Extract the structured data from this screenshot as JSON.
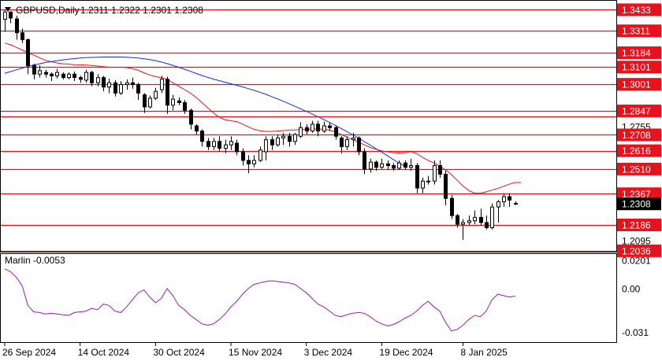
{
  "header": {
    "symbol": "GBPUSD,Daily",
    "ohlc": "1.2311 1.2322 1.2301 1.2308",
    "collapse_icon": "triangle-down-icon"
  },
  "colors": {
    "candle_border": "#000000",
    "bull_fill": "#ffffff",
    "bear_fill": "#000000",
    "level_line": "#e8121c",
    "ma_fast": "#e8121c",
    "ma_slow": "#1a2bdc",
    "oscillator": "#9b1ea8",
    "current_price_bg": "#000000"
  },
  "chart_data": [
    {
      "type": "candlestick",
      "title": "GBPUSD,Daily",
      "y_range": [
        1.2031,
        1.3485
      ],
      "y_ticks": [
        "1.3433",
        "1.3311",
        "1.3184",
        "1.3101",
        "1.3001",
        "1.2847",
        "1.2755",
        "1.2708",
        "1.2616",
        "1.2510",
        "1.2367",
        "1.2308",
        "1.2186",
        "1.2095",
        "1.2036"
      ],
      "x_ticks": [
        "26 Sep 2024",
        "14 Oct 2024",
        "30 Oct 2024",
        "15 Nov 2024",
        "3 Dec 2024",
        "19 Dec 2024",
        "8 Jan 2025"
      ],
      "current_price": "1.2308",
      "horizontal_levels": [
        "1.3433",
        "1.3311",
        "1.3184",
        "1.3101",
        "1.3001",
        "1.2847",
        "1.2816",
        "1.2708",
        "1.2616",
        "1.2510",
        "1.2367",
        "1.2186",
        "1.2036"
      ],
      "label_levels": [
        "1.3433",
        "1.3311",
        "1.3184",
        "1.3101",
        "1.3001",
        "1.2847",
        "1.2708",
        "1.2616",
        "1.2510",
        "1.2367",
        "1.2186",
        "1.2036"
      ],
      "plain_ticks": [
        "1.2755",
        "1.2095"
      ],
      "candles": [
        [
          1.3378,
          1.3434,
          1.3305,
          1.342
        ],
        [
          1.342,
          1.3424,
          1.3355,
          1.3385
        ],
        [
          1.338,
          1.3399,
          1.326,
          1.33
        ],
        [
          1.33,
          1.3324,
          1.324,
          1.326
        ],
        [
          1.326,
          1.3265,
          1.306,
          1.311
        ],
        [
          1.311,
          1.312,
          1.303,
          1.306
        ],
        [
          1.306,
          1.311,
          1.304,
          1.308
        ],
        [
          1.307,
          1.3085,
          1.304,
          1.306
        ],
        [
          1.306,
          1.307,
          1.302,
          1.305
        ],
        [
          1.305,
          1.309,
          1.3035,
          1.307
        ],
        [
          1.306,
          1.307,
          1.303,
          1.304
        ],
        [
          1.304,
          1.307,
          1.303,
          1.306
        ],
        [
          1.306,
          1.3075,
          1.302,
          1.304
        ],
        [
          1.304,
          1.305,
          1.301,
          1.303
        ],
        [
          1.3025,
          1.3085,
          1.301,
          1.307
        ],
        [
          1.307,
          1.308,
          1.299,
          1.301
        ],
        [
          1.301,
          1.306,
          1.299,
          1.304
        ],
        [
          1.304,
          1.305,
          1.296,
          1.2985
        ],
        [
          1.2985,
          1.3035,
          1.295,
          1.301
        ],
        [
          1.301,
          1.3025,
          1.293,
          1.295
        ],
        [
          1.295,
          1.302,
          1.294,
          1.3
        ],
        [
          1.3,
          1.303,
          1.297,
          1.301
        ],
        [
          1.301,
          1.304,
          1.2975,
          1.3
        ],
        [
          1.3,
          1.301,
          1.291,
          1.295
        ],
        [
          1.294,
          1.295,
          1.2835,
          1.287
        ],
        [
          1.287,
          1.2935,
          1.286,
          1.292
        ],
        [
          1.292,
          1.298,
          1.291,
          1.296
        ],
        [
          1.297,
          1.305,
          1.295,
          1.303
        ],
        [
          1.303,
          1.3045,
          1.283,
          1.288
        ],
        [
          1.288,
          1.294,
          1.285,
          1.2915
        ],
        [
          1.2905,
          1.2925,
          1.288,
          1.2895
        ],
        [
          1.2895,
          1.291,
          1.283,
          1.285
        ],
        [
          1.285,
          1.286,
          1.274,
          1.277
        ],
        [
          1.276,
          1.277,
          1.271,
          1.273
        ],
        [
          1.273,
          1.274,
          1.264,
          1.267
        ],
        [
          1.267,
          1.269,
          1.262,
          1.264
        ],
        [
          1.264,
          1.269,
          1.262,
          1.267
        ],
        [
          1.267,
          1.27,
          1.261,
          1.263
        ],
        [
          1.263,
          1.268,
          1.26,
          1.265
        ],
        [
          1.265,
          1.27,
          1.262,
          1.267
        ],
        [
          1.266,
          1.268,
          1.259,
          1.261
        ],
        [
          1.261,
          1.263,
          1.253,
          1.256
        ],
        [
          1.256,
          1.259,
          1.2485,
          1.254
        ],
        [
          1.254,
          1.259,
          1.252,
          1.256
        ],
        [
          1.256,
          1.264,
          1.255,
          1.262
        ],
        [
          1.261,
          1.27,
          1.256,
          1.268
        ],
        [
          1.268,
          1.27,
          1.262,
          1.265
        ],
        [
          1.265,
          1.271,
          1.264,
          1.269
        ],
        [
          1.269,
          1.272,
          1.265,
          1.27
        ],
        [
          1.27,
          1.272,
          1.264,
          1.267
        ],
        [
          1.267,
          1.272,
          1.265,
          1.271
        ],
        [
          1.27,
          1.278,
          1.269,
          1.275
        ],
        [
          1.275,
          1.277,
          1.271,
          1.273
        ],
        [
          1.273,
          1.279,
          1.272,
          1.277
        ],
        [
          1.277,
          1.279,
          1.27,
          1.273
        ],
        [
          1.273,
          1.2785,
          1.272,
          1.276
        ],
        [
          1.276,
          1.278,
          1.273,
          1.275
        ],
        [
          1.275,
          1.276,
          1.268,
          1.27
        ],
        [
          1.269,
          1.27,
          1.26,
          1.264
        ],
        [
          1.264,
          1.27,
          1.262,
          1.268
        ],
        [
          1.268,
          1.272,
          1.264,
          1.269
        ],
        [
          1.269,
          1.27,
          1.259,
          1.261
        ],
        [
          1.261,
          1.263,
          1.248,
          1.251
        ],
        [
          1.251,
          1.257,
          1.249,
          1.255
        ],
        [
          1.255,
          1.256,
          1.25,
          1.252
        ],
        [
          1.252,
          1.257,
          1.251,
          1.254
        ],
        [
          1.254,
          1.256,
          1.2505,
          1.253
        ],
        [
          1.253,
          1.2545,
          1.25,
          1.2515
        ],
        [
          1.2515,
          1.256,
          1.2505,
          1.2545
        ],
        [
          1.2545,
          1.256,
          1.2505,
          1.252
        ],
        [
          1.252,
          1.257,
          1.25,
          1.253
        ],
        [
          1.253,
          1.2545,
          1.237,
          1.24
        ],
        [
          1.24,
          1.246,
          1.237,
          1.244
        ],
        [
          1.244,
          1.247,
          1.242,
          1.244
        ],
        [
          1.244,
          1.256,
          1.242,
          1.253
        ],
        [
          1.253,
          1.256,
          1.246,
          1.248
        ],
        [
          1.248,
          1.25,
          1.23,
          1.234
        ],
        [
          1.234,
          1.236,
          1.222,
          1.224
        ],
        [
          1.224,
          1.225,
          1.217,
          1.219
        ],
        [
          1.219,
          1.222,
          1.21,
          1.22
        ],
        [
          1.22,
          1.224,
          1.218,
          1.221
        ],
        [
          1.221,
          1.227,
          1.219,
          1.223
        ],
        [
          1.223,
          1.228,
          1.218,
          1.22
        ],
        [
          1.22,
          1.224,
          1.216,
          1.217
        ],
        [
          1.217,
          1.231,
          1.216,
          1.229
        ],
        [
          1.229,
          1.233,
          1.22,
          1.232
        ],
        [
          1.232,
          1.237,
          1.229,
          1.235
        ],
        [
          1.235,
          1.237,
          1.229,
          1.233
        ],
        [
          1.2311,
          1.2322,
          1.2301,
          1.2308
        ]
      ],
      "series": [
        {
          "name": "ma_fast",
          "values": [
            1.324,
            1.323,
            1.3215,
            1.32,
            1.3185,
            1.317,
            1.3155,
            1.314,
            1.3132,
            1.3125,
            1.312,
            1.3118,
            1.3115,
            1.3114,
            1.3112,
            1.311,
            1.3107,
            1.3103,
            1.31,
            1.31,
            1.31,
            1.3098,
            1.3092,
            1.3082,
            1.3068,
            1.3055,
            1.3045,
            1.304,
            1.303,
            1.301,
            1.299,
            1.297,
            1.295,
            1.2925,
            1.2895,
            1.2865,
            1.2835,
            1.281,
            1.2795,
            1.279,
            1.2785,
            1.277,
            1.2755,
            1.274,
            1.2732,
            1.2728,
            1.2728,
            1.273,
            1.2733,
            1.2735,
            1.2736,
            1.2738,
            1.274,
            1.2742,
            1.2742,
            1.274,
            1.2735,
            1.2725,
            1.271,
            1.2695,
            1.268,
            1.2665,
            1.265,
            1.2635,
            1.2625,
            1.2615,
            1.261,
            1.2605,
            1.2603,
            1.2605,
            1.261,
            1.26,
            1.2578,
            1.256,
            1.2545,
            1.2528,
            1.2505,
            1.2478,
            1.2445,
            1.2412,
            1.2385,
            1.237,
            1.237,
            1.2378,
            1.2388,
            1.2398,
            1.241,
            1.2422,
            1.2432,
            1.2432
          ]
        },
        {
          "name": "ma_slow",
          "values": [
            1.3065,
            1.3075,
            1.3085,
            1.3095,
            1.3105,
            1.3113,
            1.312,
            1.3127,
            1.3132,
            1.3137,
            1.3142,
            1.3147,
            1.315,
            1.3153,
            1.3156,
            1.3157,
            1.3158,
            1.3159,
            1.3159,
            1.3159,
            1.3159,
            1.3158,
            1.3156,
            1.3153,
            1.3149,
            1.3144,
            1.3138,
            1.313,
            1.3121,
            1.3111,
            1.31,
            1.3088,
            1.3076,
            1.3064,
            1.3052,
            1.3041,
            1.3031,
            1.3022,
            1.3013,
            1.3004,
            1.2995,
            1.2986,
            1.2976,
            1.2966,
            1.2955,
            1.2943,
            1.293,
            1.2917,
            1.2903,
            1.2889,
            1.2874,
            1.2859,
            1.2844,
            1.2829,
            1.2813,
            1.2797,
            1.278,
            1.2763,
            1.2745,
            1.2727,
            1.2708,
            1.2689,
            1.2669,
            1.2649,
            1.2628,
            1.2607,
            1.2586,
            1.2565,
            1.2544,
            1.2525
          ]
        }
      ]
    },
    {
      "type": "line",
      "title": "Marlin -0.0053",
      "y_range": [
        -0.038,
        0.0245
      ],
      "y_ticks": [
        "0.0201",
        "0.00",
        "-0.031"
      ],
      "series": [
        {
          "name": "Marlin",
          "values": [
            0.014,
            0.012,
            0.008,
            0.002,
            -0.012,
            -0.0165,
            -0.017,
            -0.018,
            -0.0175,
            -0.018,
            -0.0185,
            -0.019,
            -0.017,
            -0.0165,
            -0.016,
            -0.014,
            -0.015,
            -0.011,
            -0.012,
            -0.016,
            -0.017,
            -0.013,
            -0.008,
            -0.003,
            -0.001,
            -0.006,
            -0.01,
            -0.007,
            0.0,
            -0.005,
            -0.012,
            -0.015,
            -0.019,
            -0.022,
            -0.025,
            -0.026,
            -0.025,
            -0.022,
            -0.018,
            -0.013,
            -0.009,
            -0.004,
            0.0,
            0.003,
            0.004,
            0.005,
            0.0055,
            0.005,
            0.0045,
            0.004,
            0.003,
            0.0,
            -0.003,
            -0.007,
            -0.011,
            -0.013,
            -0.016,
            -0.019,
            -0.02,
            -0.0185,
            -0.0175,
            -0.017,
            -0.0175,
            -0.02,
            -0.023,
            -0.025,
            -0.0265,
            -0.0255,
            -0.0235,
            -0.021,
            -0.019,
            -0.016,
            -0.012,
            -0.009,
            -0.013,
            -0.016,
            -0.024,
            -0.03,
            -0.029,
            -0.026,
            -0.022,
            -0.019,
            -0.02,
            -0.016,
            -0.008,
            -0.004,
            -0.005,
            -0.006,
            -0.0053
          ]
        }
      ]
    }
  ]
}
